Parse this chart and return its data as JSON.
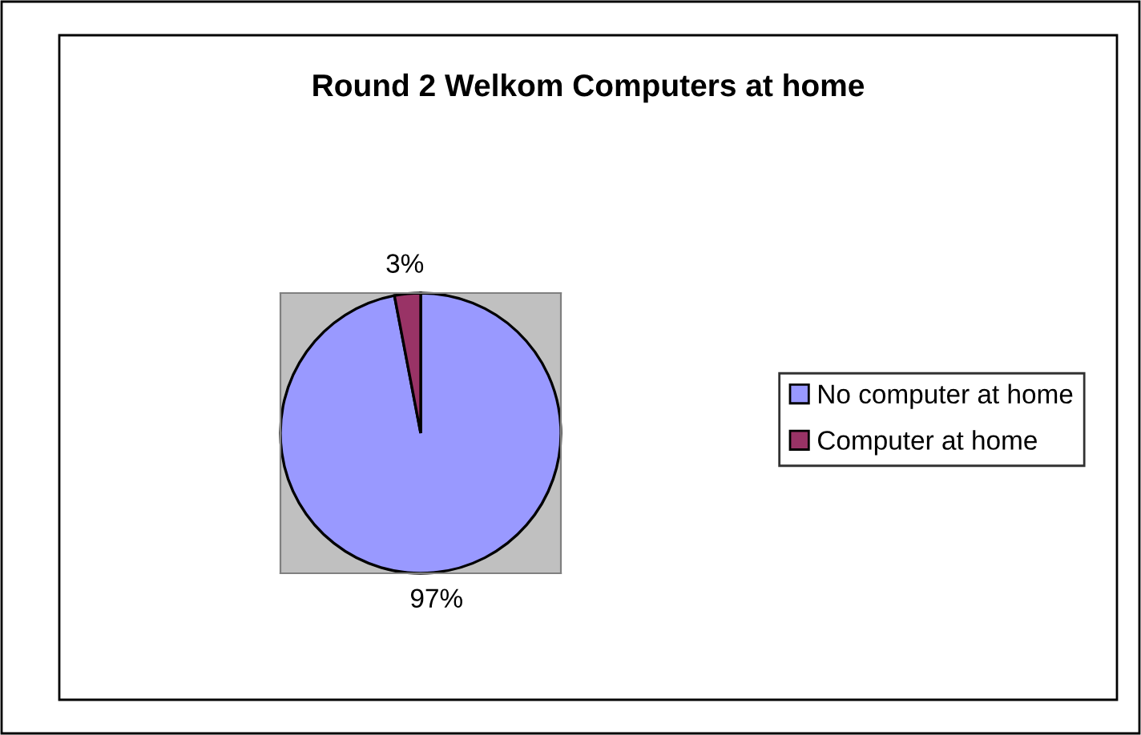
{
  "chart_data": {
    "type": "pie",
    "title": "Round 2 Welkom Computers at home",
    "categories": [
      "No computer at home",
      "Computer at home"
    ],
    "values": [
      97,
      3
    ],
    "colors": [
      "#9999ff",
      "#993366"
    ],
    "value_labels": [
      "97%",
      "3%"
    ],
    "legend": "right"
  }
}
